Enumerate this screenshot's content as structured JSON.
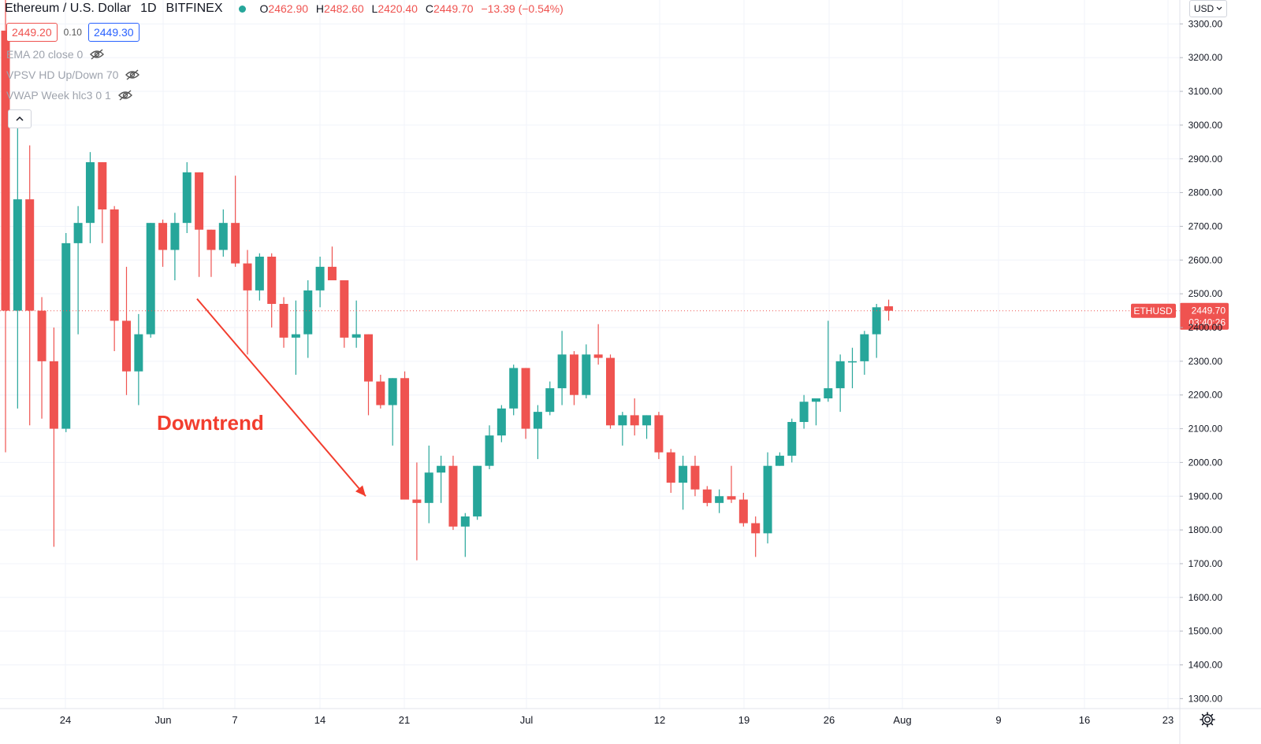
{
  "header": {
    "symbol": "Ethereum / U.S. Dollar",
    "interval": "1D",
    "exchange": "BITFINEX",
    "open_label": "O",
    "open": "2462.90",
    "high_label": "H",
    "high": "2482.60",
    "low_label": "L",
    "low": "2420.40",
    "close_label": "C",
    "close": "2449.70",
    "change": "−13.39 (−0.54%)"
  },
  "price_boxes": {
    "bid": "2449.20",
    "spread": "0.10",
    "ask": "2449.30"
  },
  "indicators": [
    {
      "label": "EMA 20 close 0"
    },
    {
      "label": "VPSV HD Up/Down 70"
    },
    {
      "label": "VWAP Week hlc3 0 1"
    }
  ],
  "currency_button": "USD",
  "collapse_icon": "chevron-up-icon",
  "settings_icon": "gear-icon",
  "colors": {
    "up": "#26a69a",
    "down": "#ef5350",
    "annotation": "#f23d2e",
    "grid": "#f0f3fa"
  },
  "chart_data": {
    "type": "candlestick",
    "title": "Ethereum / U.S. Dollar",
    "ylim": [
      1250,
      3350
    ],
    "y_ticks": [
      1300,
      1400,
      1500,
      1600,
      1700,
      1800,
      1900,
      2000,
      2100,
      2200,
      2300,
      2400,
      2500,
      2600,
      2700,
      2800,
      2900,
      3000,
      3100,
      3200,
      3300
    ],
    "x_ticks": [
      "24",
      "Jun",
      "7",
      "14",
      "21",
      "Jul",
      "12",
      "19",
      "26",
      "Aug",
      "9",
      "16",
      "23"
    ],
    "current_price": {
      "symbol": "ETHUSD",
      "price": "2449.70",
      "countdown": "03:40:26",
      "value": 2449.7
    },
    "annotation": {
      "text": "Downtrend",
      "arrow_from": [
        2485,
        2545
      ],
      "arrow_to": [
        1900,
        1895
      ]
    },
    "candles": [
      {
        "o": 3280,
        "h": 3400,
        "l": 2030,
        "c": 2450
      },
      {
        "o": 2450,
        "h": 2990,
        "l": 2160,
        "c": 2780
      },
      {
        "o": 2780,
        "h": 2940,
        "l": 2110,
        "c": 2450
      },
      {
        "o": 2450,
        "h": 2490,
        "l": 2130,
        "c": 2300
      },
      {
        "o": 2300,
        "h": 2400,
        "l": 1750,
        "c": 2100
      },
      {
        "o": 2100,
        "h": 2680,
        "l": 2090,
        "c": 2650
      },
      {
        "o": 2650,
        "h": 2760,
        "l": 2380,
        "c": 2710
      },
      {
        "o": 2710,
        "h": 2920,
        "l": 2650,
        "c": 2890
      },
      {
        "o": 2890,
        "h": 2890,
        "l": 2650,
        "c": 2750
      },
      {
        "o": 2750,
        "h": 2760,
        "l": 2330,
        "c": 2420
      },
      {
        "o": 2420,
        "h": 2580,
        "l": 2200,
        "c": 2270
      },
      {
        "o": 2270,
        "h": 2440,
        "l": 2170,
        "c": 2380
      },
      {
        "o": 2380,
        "h": 2710,
        "l": 2370,
        "c": 2710
      },
      {
        "o": 2710,
        "h": 2720,
        "l": 2580,
        "c": 2630
      },
      {
        "o": 2630,
        "h": 2740,
        "l": 2540,
        "c": 2710
      },
      {
        "o": 2710,
        "h": 2890,
        "l": 2680,
        "c": 2860
      },
      {
        "o": 2860,
        "h": 2860,
        "l": 2550,
        "c": 2690
      },
      {
        "o": 2690,
        "h": 2690,
        "l": 2550,
        "c": 2630
      },
      {
        "o": 2630,
        "h": 2750,
        "l": 2610,
        "c": 2710
      },
      {
        "o": 2710,
        "h": 2850,
        "l": 2580,
        "c": 2590
      },
      {
        "o": 2590,
        "h": 2630,
        "l": 2320,
        "c": 2510
      },
      {
        "o": 2510,
        "h": 2620,
        "l": 2480,
        "c": 2610
      },
      {
        "o": 2610,
        "h": 2620,
        "l": 2400,
        "c": 2470
      },
      {
        "o": 2470,
        "h": 2490,
        "l": 2340,
        "c": 2370
      },
      {
        "o": 2370,
        "h": 2480,
        "l": 2260,
        "c": 2380
      },
      {
        "o": 2380,
        "h": 2540,
        "l": 2310,
        "c": 2510
      },
      {
        "o": 2510,
        "h": 2610,
        "l": 2460,
        "c": 2580
      },
      {
        "o": 2580,
        "h": 2640,
        "l": 2540,
        "c": 2540
      },
      {
        "o": 2540,
        "h": 2540,
        "l": 2340,
        "c": 2370
      },
      {
        "o": 2370,
        "h": 2480,
        "l": 2340,
        "c": 2380
      },
      {
        "o": 2380,
        "h": 2380,
        "l": 2140,
        "c": 2240
      },
      {
        "o": 2240,
        "h": 2260,
        "l": 2160,
        "c": 2170
      },
      {
        "o": 2170,
        "h": 2250,
        "l": 2050,
        "c": 2250
      },
      {
        "o": 2250,
        "h": 2270,
        "l": 1890,
        "c": 1890
      },
      {
        "o": 1890,
        "h": 2000,
        "l": 1710,
        "c": 1880
      },
      {
        "o": 1880,
        "h": 2050,
        "l": 1820,
        "c": 1970
      },
      {
        "o": 1970,
        "h": 2020,
        "l": 1880,
        "c": 1990
      },
      {
        "o": 1990,
        "h": 2020,
        "l": 1800,
        "c": 1810
      },
      {
        "o": 1810,
        "h": 1850,
        "l": 1720,
        "c": 1840
      },
      {
        "o": 1840,
        "h": 1990,
        "l": 1830,
        "c": 1990
      },
      {
        "o": 1990,
        "h": 2110,
        "l": 1980,
        "c": 2080
      },
      {
        "o": 2080,
        "h": 2170,
        "l": 2060,
        "c": 2160
      },
      {
        "o": 2160,
        "h": 2290,
        "l": 2140,
        "c": 2280
      },
      {
        "o": 2280,
        "h": 2280,
        "l": 2070,
        "c": 2100
      },
      {
        "o": 2100,
        "h": 2170,
        "l": 2010,
        "c": 2150
      },
      {
        "o": 2150,
        "h": 2240,
        "l": 2140,
        "c": 2220
      },
      {
        "o": 2220,
        "h": 2390,
        "l": 2170,
        "c": 2320
      },
      {
        "o": 2320,
        "h": 2330,
        "l": 2170,
        "c": 2200
      },
      {
        "o": 2200,
        "h": 2350,
        "l": 2190,
        "c": 2320
      },
      {
        "o": 2320,
        "h": 2410,
        "l": 2290,
        "c": 2310
      },
      {
        "o": 2310,
        "h": 2320,
        "l": 2100,
        "c": 2110
      },
      {
        "o": 2110,
        "h": 2150,
        "l": 2050,
        "c": 2140
      },
      {
        "o": 2140,
        "h": 2190,
        "l": 2080,
        "c": 2110
      },
      {
        "o": 2110,
        "h": 2140,
        "l": 2070,
        "c": 2140
      },
      {
        "o": 2140,
        "h": 2150,
        "l": 2010,
        "c": 2030
      },
      {
        "o": 2030,
        "h": 2040,
        "l": 1910,
        "c": 1940
      },
      {
        "o": 1940,
        "h": 2020,
        "l": 1860,
        "c": 1990
      },
      {
        "o": 1990,
        "h": 2020,
        "l": 1900,
        "c": 1920
      },
      {
        "o": 1920,
        "h": 1930,
        "l": 1870,
        "c": 1880
      },
      {
        "o": 1880,
        "h": 1920,
        "l": 1850,
        "c": 1900
      },
      {
        "o": 1900,
        "h": 1990,
        "l": 1880,
        "c": 1890
      },
      {
        "o": 1890,
        "h": 1910,
        "l": 1810,
        "c": 1820
      },
      {
        "o": 1820,
        "h": 1840,
        "l": 1720,
        "c": 1790
      },
      {
        "o": 1790,
        "h": 2030,
        "l": 1760,
        "c": 1990
      },
      {
        "o": 1990,
        "h": 2030,
        "l": 1990,
        "c": 2020
      },
      {
        "o": 2020,
        "h": 2130,
        "l": 2000,
        "c": 2120
      },
      {
        "o": 2120,
        "h": 2200,
        "l": 2100,
        "c": 2180
      },
      {
        "o": 2180,
        "h": 2190,
        "l": 2110,
        "c": 2190
      },
      {
        "o": 2190,
        "h": 2420,
        "l": 2180,
        "c": 2220
      },
      {
        "o": 2220,
        "h": 2320,
        "l": 2150,
        "c": 2300
      },
      {
        "o": 2300,
        "h": 2340,
        "l": 2220,
        "c": 2300
      },
      {
        "o": 2300,
        "h": 2390,
        "l": 2260,
        "c": 2380
      },
      {
        "o": 2380,
        "h": 2470,
        "l": 2310,
        "c": 2460
      },
      {
        "o": 2462.9,
        "h": 2482.6,
        "l": 2420.4,
        "c": 2449.7
      }
    ]
  }
}
